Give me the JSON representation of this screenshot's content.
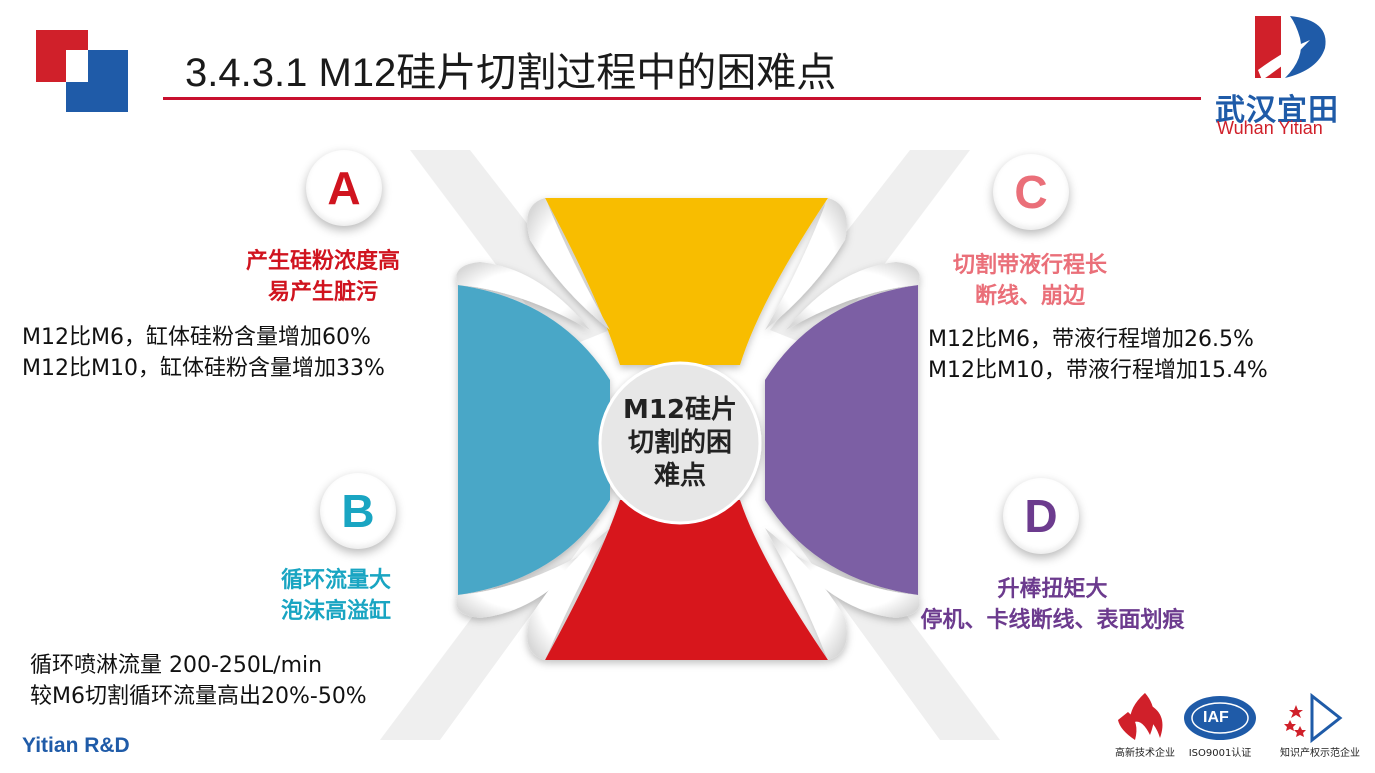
{
  "title": "3.4.3.1 M12硅片切割过程中的困难点",
  "logo": {
    "name_cn": "武汉宜田",
    "name_en": "Wuhan Yitian"
  },
  "center": {
    "line1": "M12硅片",
    "line2": "切割的困",
    "line3": "难点"
  },
  "colors": {
    "yellow": "#f8bd00",
    "blue": "#4aa7c7",
    "purple": "#7c5ea4",
    "red": "#d7161e",
    "brand_red": "#c8102e",
    "brand_blue": "#1f5ba8"
  },
  "points": {
    "a": {
      "letter": "A",
      "head1": "产生硅粉浓度高",
      "head2": "易产生脏污",
      "detail1": "M12比M6，缸体硅粉含量增加60%",
      "detail2": "M12比M10，缸体硅粉含量增加33%",
      "color": "#d0141f"
    },
    "b": {
      "letter": "B",
      "head1": "循环流量大",
      "head2": "泡沫高溢缸",
      "detail1": "循环喷淋流量 200-250L/min",
      "detail2": "较M6切割循环流量高出20%-50%",
      "color": "#19a5c2"
    },
    "c": {
      "letter": "C",
      "head1": "切割带液行程长",
      "head2": "断线、崩边",
      "detail1": "M12比M6，带液行程增加26.5%",
      "detail2": "M12比M10，带液行程增加15.4%",
      "color": "#ea6f79"
    },
    "d": {
      "letter": "D",
      "head1": "升棒扭矩大",
      "head2": "停机、卡线断线、表面划痕",
      "color": "#6c3b8e"
    }
  },
  "footer": "Yitian R&D",
  "certs": {
    "c1": "高新技术企业",
    "c2": "ISO9001认证",
    "c3": "知识产权示范企业",
    "iaf": "IAF"
  },
  "icons": [
    "corner-squares-icon",
    "logo-sail-icon",
    "hitech-flame-icon",
    "iaf-globe-icon",
    "ip-star-icon"
  ]
}
